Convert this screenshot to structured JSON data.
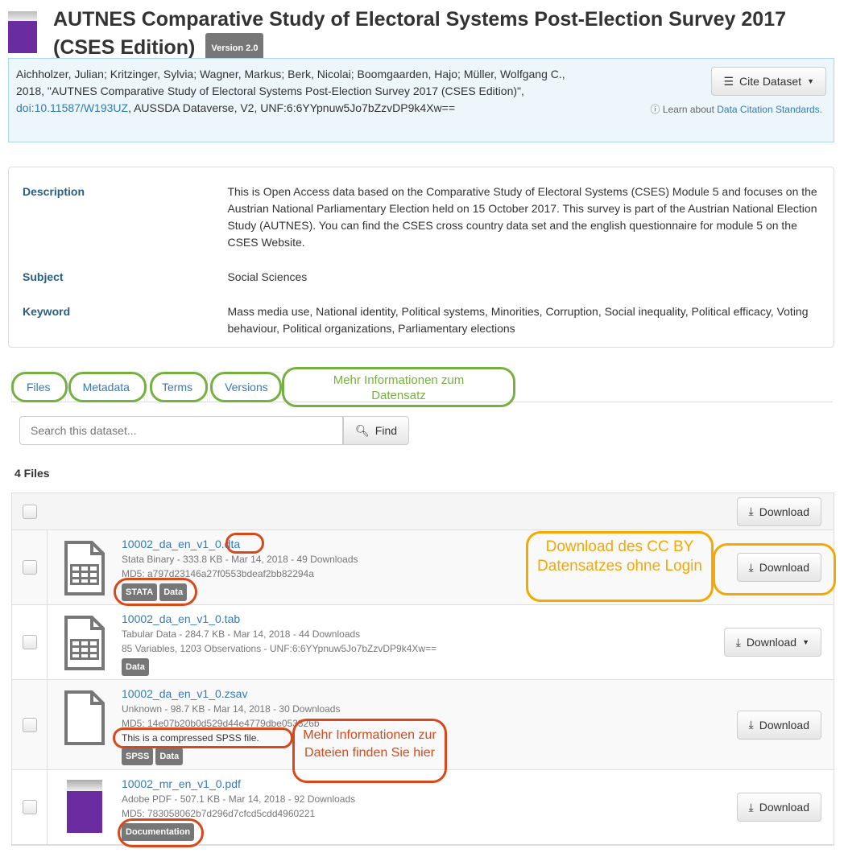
{
  "dataset": {
    "title": "AUTNES Comparative Study of Electoral Systems Post-Election Survey 2017 (CSES Edition)",
    "version": "Version 2.0"
  },
  "citation": {
    "text_before": "Aichholzer, Julian; Kritzinger, Sylvia; Wagner, Markus; Berk, Nicolai; Boomgaarden, Hajo; Müller, Wolfgang C., 2018, \"AUTNES Comparative Study of Electoral Systems Post-Election Survey 2017 (CSES Edition)\", ",
    "doi": "doi:10.11587/W193UZ",
    "text_after": ", AUSSDA Dataverse, V2, UNF:6:6YYpnuw5Jo7bZzvDP9k4Xw==",
    "cite_button": "Cite Dataset",
    "learn_prefix": "Learn about ",
    "learn_link": "Data Citation Standards."
  },
  "metadata": [
    {
      "label": "Description",
      "value": "This is Open Access data based on the Comparative Study of Electoral Systems (CSES) Module 5 and focuses on the Austrian National Parliamentary Election held on 15 October 2017. This survey is part of the Austrian National Election Study (AUTNES). You can find the CSES cross country data set and the english questionnaire for module 5 on the CSES Website."
    },
    {
      "label": "Subject",
      "value": "Social Sciences"
    },
    {
      "label": "Keyword",
      "value": "Mass media use, National identity, Political systems, Minorities, Corruption, Social inequality, Political efficacy, Voting behaviour, Political organizations, Parliamentary elections"
    }
  ],
  "tabs": [
    "Files",
    "Metadata",
    "Terms",
    "Versions"
  ],
  "search": {
    "placeholder": "Search this dataset...",
    "button": "Find"
  },
  "files_count": "4 Files",
  "download_label": "Download",
  "files": [
    {
      "name": "10002_da_en_v1_0.dta",
      "line1": "Stata Binary - 333.8 KB - Mar 14, 2018 - 49 Downloads",
      "line2": "MD5: a797d23146a27f0553bdeaf2bb82294a",
      "labels": [
        "STATA",
        "Data"
      ],
      "icon": "tabular-file-icon"
    },
    {
      "name": "10002_da_en_v1_0.tab",
      "line1": "Tabular Data - 284.7 KB - Mar 14, 2018 - 44 Downloads",
      "line2": "85 Variables, 1203 Observations - UNF:6:6YYpnuw5Jo7bZzvDP9k4Xw==",
      "labels": [
        "Data"
      ],
      "icon": "tabular-file-icon",
      "dropdown": true
    },
    {
      "name": "10002_da_en_v1_0.zsav",
      "line1": "Unknown - 98.7 KB - Mar 14, 2018 - 30 Downloads",
      "line2": "MD5: 14e07b20b0d529d44e4779dbe053326b",
      "description": "This is a compressed SPSS file.",
      "labels": [
        "SPSS",
        "Data"
      ],
      "icon": "blank-file-icon"
    },
    {
      "name": "10002_mr_en_v1_0.pdf",
      "line1": "Adobe PDF - 507.1 KB - Mar 14, 2018 - 92 Downloads",
      "line2": "MD5: 783058062b7d296d7cfcd5cdd4960221",
      "labels": [
        "Documentation"
      ],
      "icon": "pdf-thumbnail"
    }
  ],
  "annotations": {
    "tabs_note": "Mehr Informationen zum Datensatz",
    "download_note": "Download des CC BY Datensatzes ohne Login",
    "file_note": "Mehr Informationen zur Dateien finden Sie hier"
  },
  "colors": {
    "link": "#337ab7",
    "green": "#76b041",
    "orange": "#f5a800",
    "red": "#d9481a"
  }
}
